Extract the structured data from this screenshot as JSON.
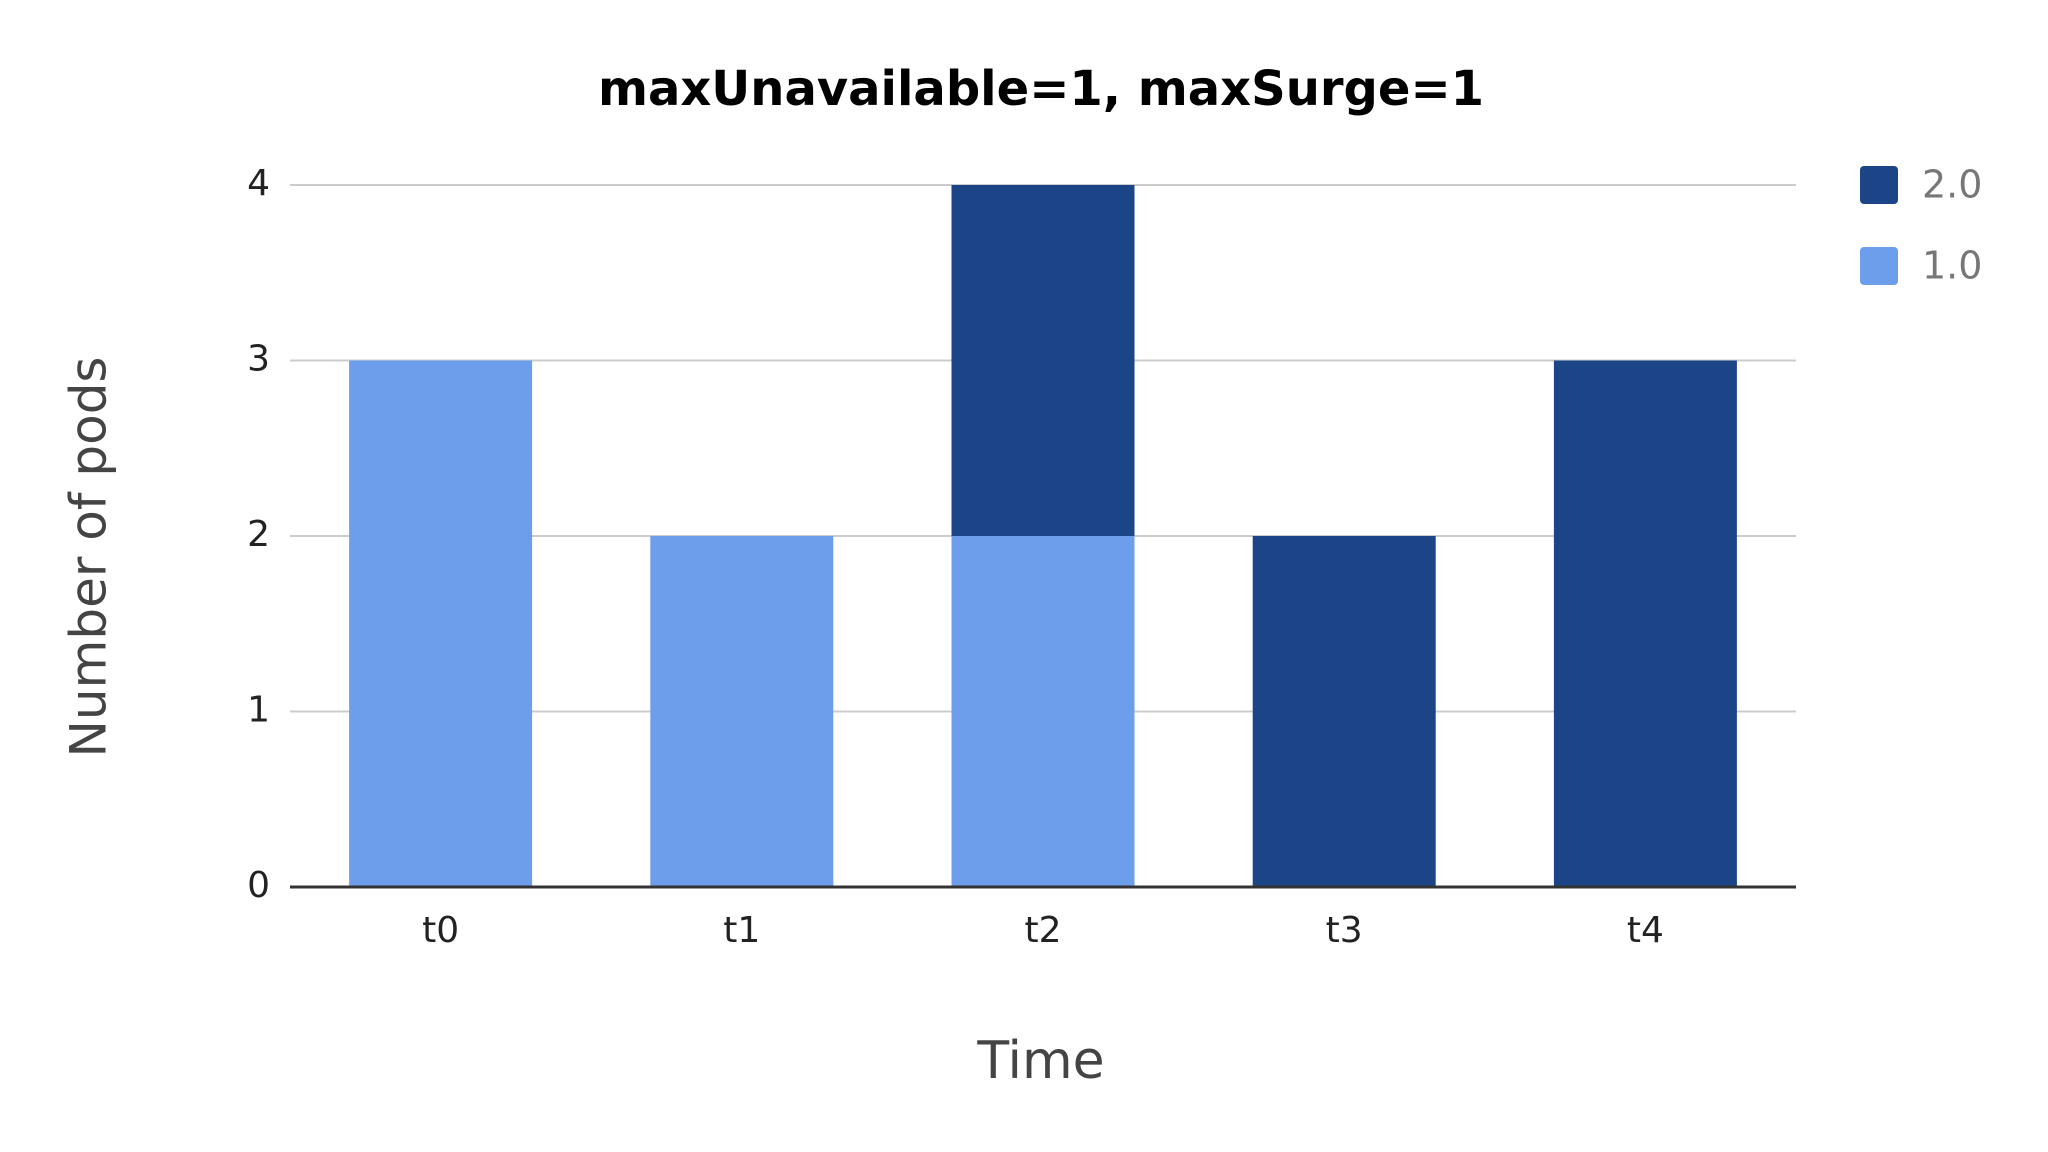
{
  "chart_data": {
    "type": "stacked-bar",
    "title": "maxUnavailable=1, maxSurge=1",
    "x_label": "Time",
    "y_label": "Number of pods",
    "categories": [
      "t0",
      "t1",
      "t2",
      "t3",
      "t4"
    ],
    "series": [
      {
        "name": "1.0",
        "color": "#6d9eeb",
        "values": [
          3,
          2,
          2,
          0,
          0
        ]
      },
      {
        "name": "2.0",
        "color": "#1c4587",
        "values": [
          0,
          0,
          2,
          2,
          3
        ]
      }
    ],
    "ylim": [
      0,
      4
    ],
    "yticks": [
      0,
      1,
      2,
      3,
      4
    ],
    "grid": true,
    "legend": "right"
  }
}
